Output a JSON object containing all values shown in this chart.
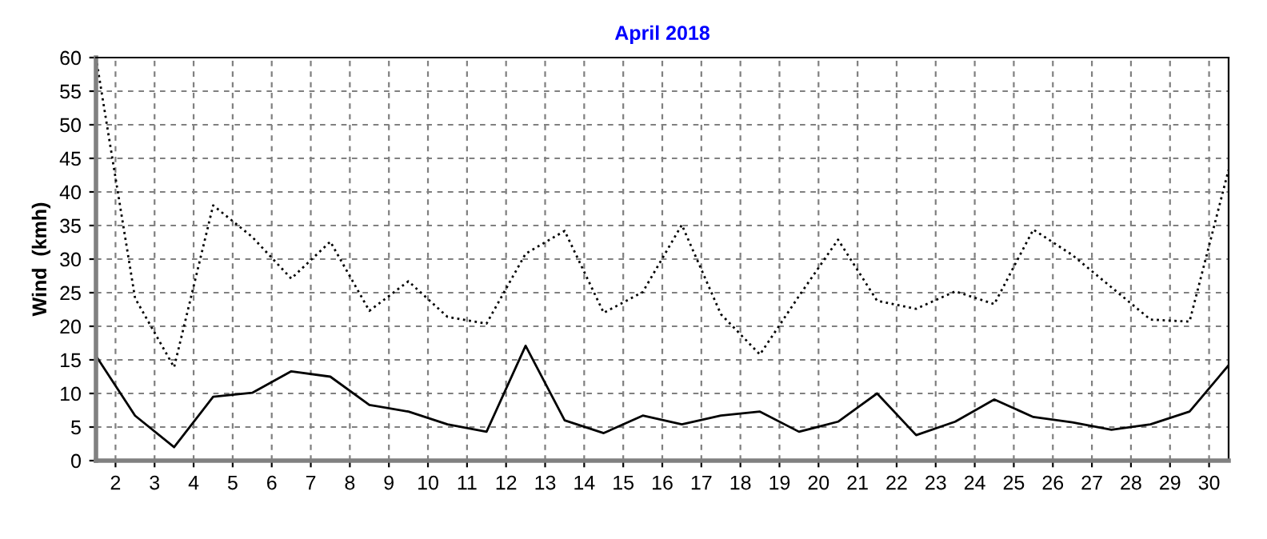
{
  "chart_data": {
    "type": "line",
    "title": "April 2018",
    "ylabel": "Wind  (kmh)",
    "x": [
      1.5,
      2.5,
      3.5,
      4.5,
      5.5,
      6.5,
      7.5,
      8.5,
      9.5,
      10.5,
      11.5,
      12.5,
      13.5,
      14.5,
      15.5,
      16.5,
      17.5,
      18.5,
      19.5,
      20.5,
      21.5,
      22.5,
      23.5,
      24.5,
      25.5,
      26.5,
      27.5,
      28.5,
      29.5,
      30.5
    ],
    "series": [
      {
        "color": "#000000",
        "line_style": "solid",
        "values": [
          15.6,
          6.7,
          2.0,
          9.5,
          10.1,
          13.3,
          12.5,
          8.3,
          7.3,
          5.4,
          4.3,
          17.1,
          6.0,
          4.1,
          6.7,
          5.4,
          6.7,
          7.3,
          4.3,
          5.8,
          10.0,
          3.8,
          5.8,
          9.1,
          6.5,
          5.7,
          4.6,
          5.4,
          7.3,
          14.2
        ]
      },
      {
        "color": "#000000",
        "line_style": "dotted",
        "values": [
          60,
          24.2,
          13.9,
          38.0,
          33.3,
          27.1,
          32.6,
          22.3,
          26.7,
          21.4,
          20.4,
          30.8,
          34.2,
          22.0,
          25.1,
          35.1,
          21.8,
          15.8,
          24.5,
          32.9,
          23.8,
          22.6,
          25.2,
          23.3,
          34.4,
          30.6,
          25.8,
          21.0,
          20.7,
          43.3
        ]
      }
    ],
    "xlim": [
      1.5,
      30.5
    ],
    "xticks": [
      2,
      3,
      4,
      5,
      6,
      7,
      8,
      9,
      10,
      11,
      12,
      13,
      14,
      15,
      16,
      17,
      18,
      19,
      20,
      21,
      22,
      23,
      24,
      25,
      26,
      27,
      28,
      29,
      30
    ],
    "ylim": [
      0,
      60
    ],
    "yticks": [
      0,
      5,
      10,
      15,
      20,
      25,
      30,
      35,
      40,
      45,
      50,
      55,
      60
    ],
    "grid": true,
    "marker": "none"
  }
}
